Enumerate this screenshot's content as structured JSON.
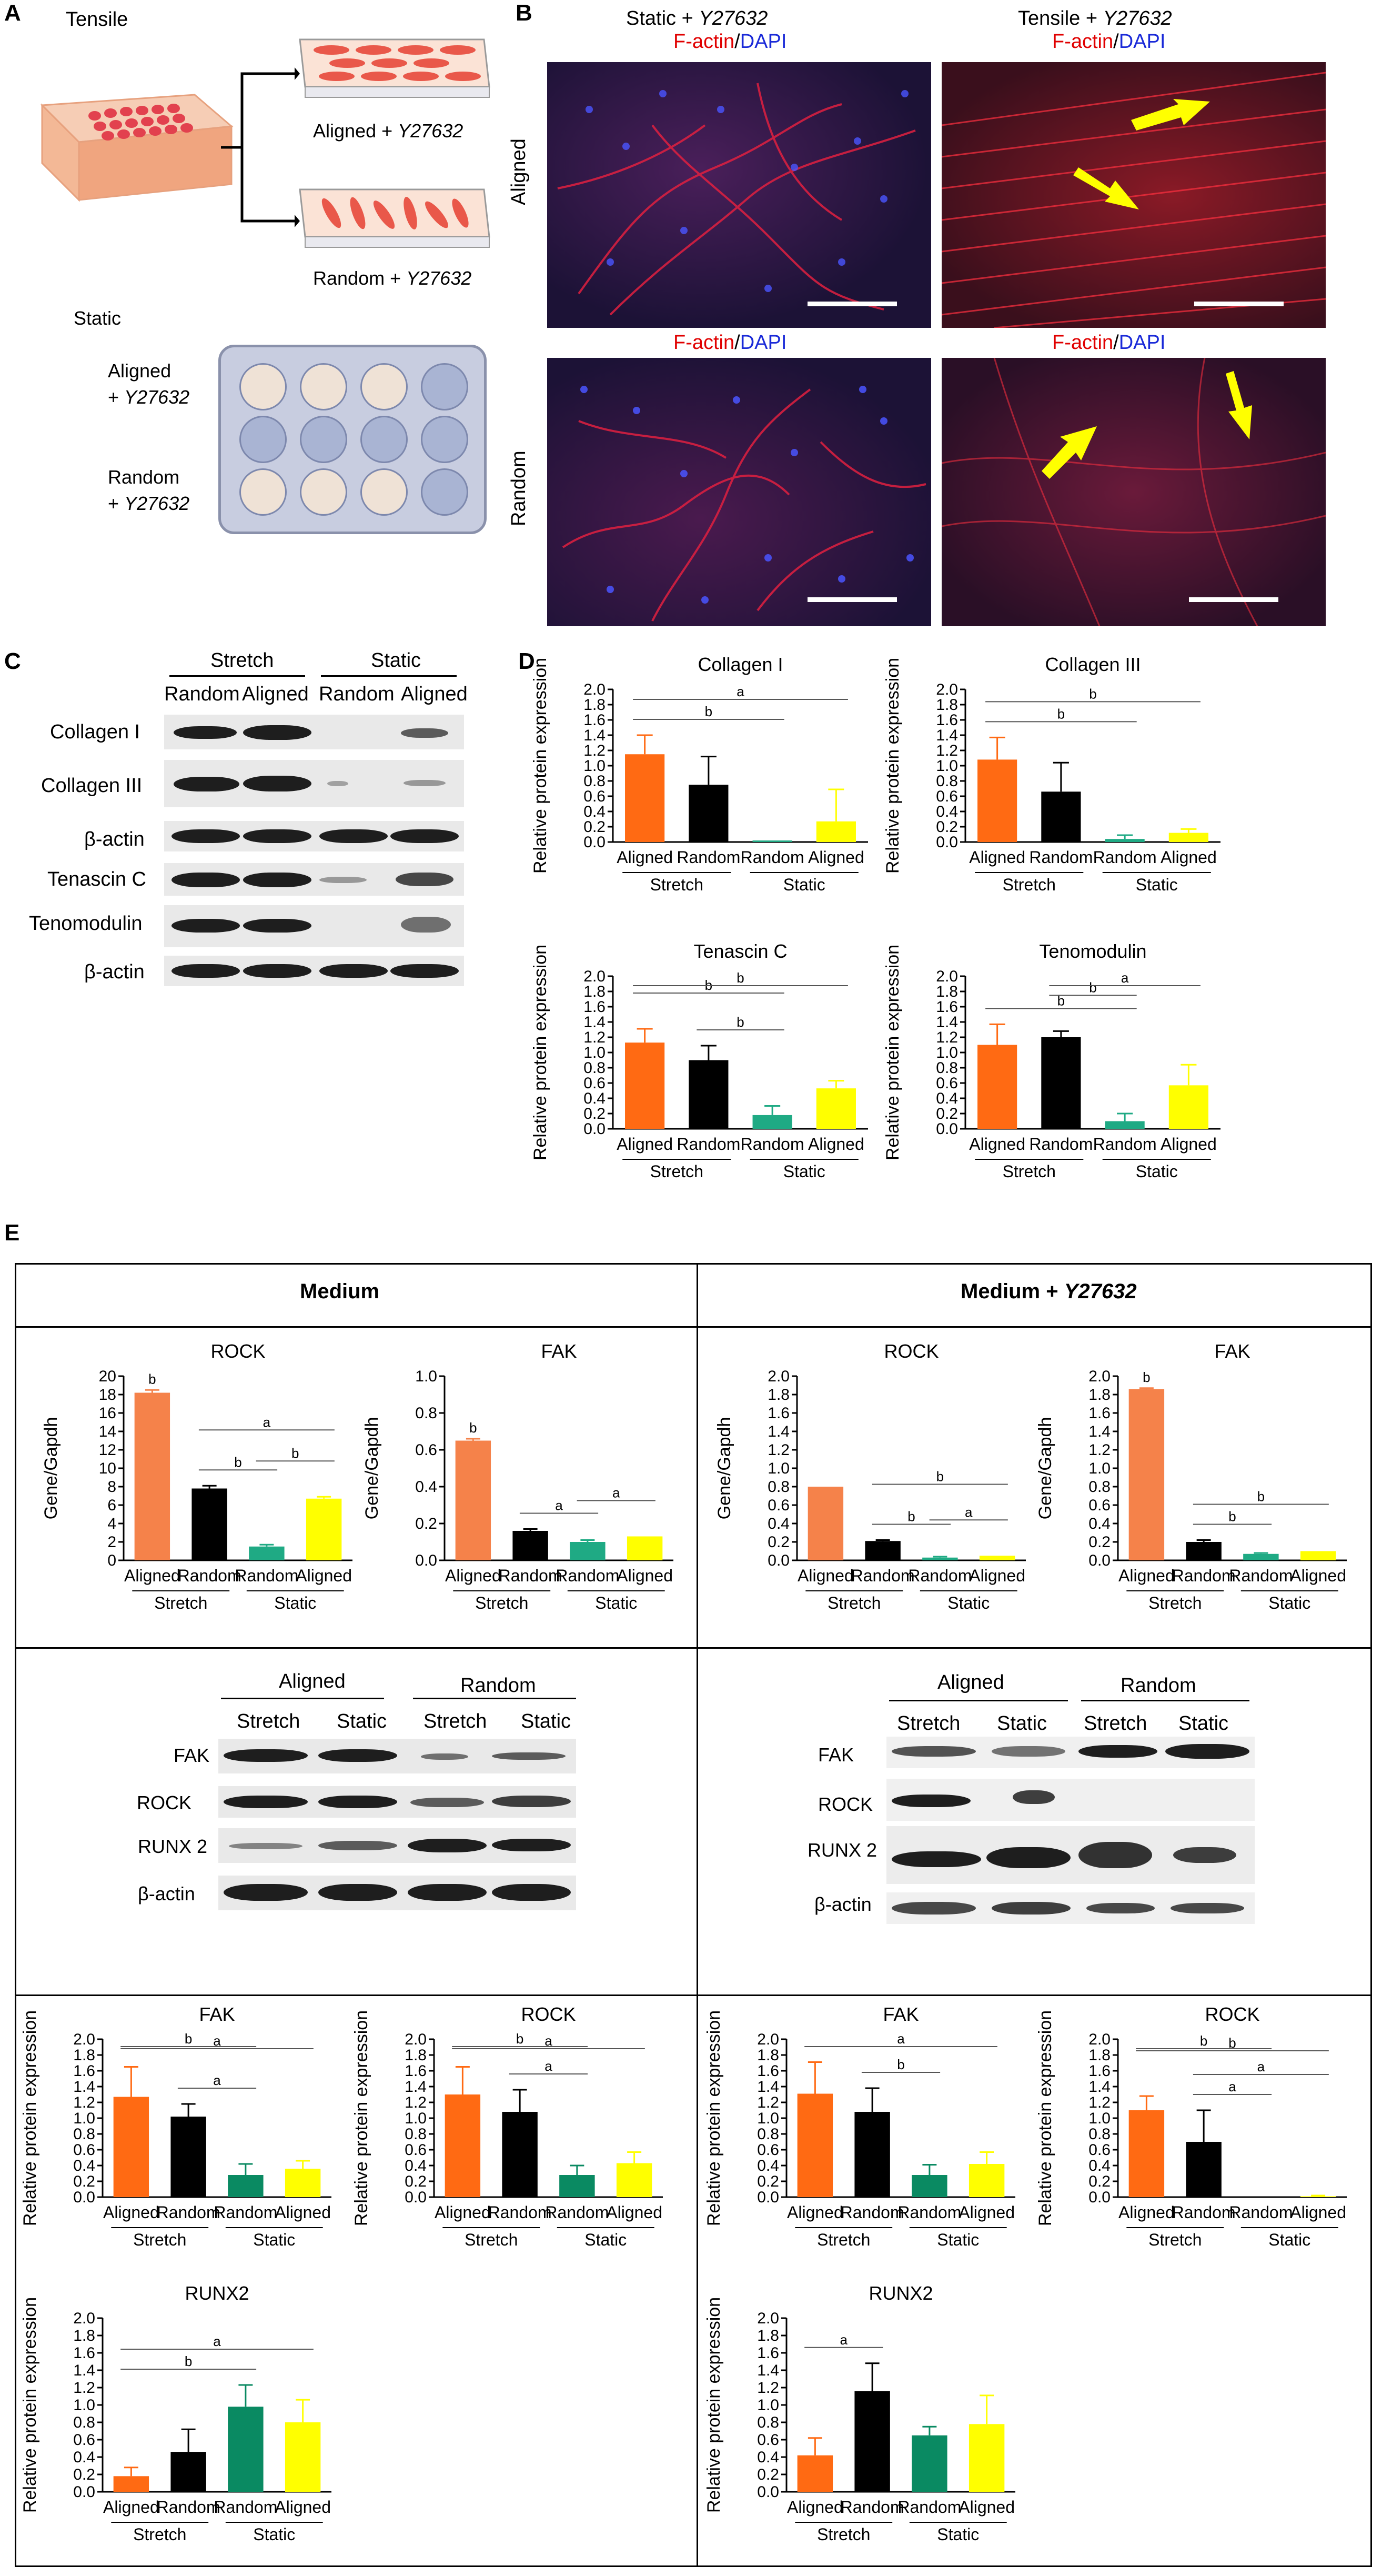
{
  "panels": {
    "a": "A",
    "b": "B",
    "c": "C",
    "d": "D",
    "e": "E"
  },
  "panel_a": {
    "tensile": "Tensile",
    "aligned_label": "Aligned + ",
    "random_label": "Random + ",
    "drug": "Y27632",
    "static": "Static",
    "plate_aligned_1": "Aligned",
    "plate_aligned_2": "+ ",
    "plate_random_1": "Random",
    "plate_random_2": "+ "
  },
  "panel_b": {
    "col1_title": "Static + ",
    "col2_title": "Tensile + ",
    "drug": "Y27632",
    "factin": "F-actin",
    "slash": "/",
    "dapi": "DAPI",
    "row1": "Aligned",
    "row2": "Random"
  },
  "panel_c": {
    "group1": "Stretch",
    "group2": "Static",
    "col_random": "Random",
    "col_aligned": "Aligned",
    "rows": [
      "Collagen I",
      "Collagen III",
      "β-actin",
      "Tenascin C",
      "Tenomodulin",
      "β-actin"
    ]
  },
  "panel_e": {
    "medium": "Medium",
    "medium_y": "Medium + ",
    "drug": "Y27632",
    "blot_left": {
      "group1": "Aligned",
      "group2": "Random",
      "cols": [
        "Stretch",
        "Static",
        "Stretch",
        "Static"
      ],
      "rows": [
        "FAK",
        "ROCK",
        "RUNX 2",
        "β-actin"
      ]
    },
    "blot_right": {
      "group1": "Aligned",
      "group2": "Random",
      "cols": [
        "Stretch",
        "Static",
        "Stretch",
        "Static"
      ],
      "rows": [
        "FAK",
        "ROCK",
        "RUNX 2",
        "β-actin"
      ]
    }
  },
  "colors": {
    "aligned_stretch": "#ff6a13",
    "random_stretch": "#000000",
    "random_static": "#1faa84",
    "aligned_static": "#ffff00",
    "e_aligned_stretch": "#f5824a",
    "e_random_static": "#0a8a62"
  },
  "chart_data": [
    {
      "id": "d1",
      "type": "bar",
      "title": "Collagen I",
      "ylabel": "Relative protein expression",
      "categories": [
        "Aligned",
        "Random",
        "Random",
        "Aligned"
      ],
      "groups": [
        "Stretch",
        "Static"
      ],
      "values": [
        1.15,
        0.75,
        0.02,
        0.27
      ],
      "errors": [
        0.25,
        0.37,
        0.0,
        0.42
      ],
      "ylim": [
        0,
        2.0
      ],
      "ystep": 0.2,
      "sig": [
        {
          "from": 0,
          "to": 2,
          "label": "b"
        },
        {
          "from": 0,
          "to": 3,
          "label": "a"
        }
      ]
    },
    {
      "id": "d2",
      "type": "bar",
      "title": "Collagen III",
      "ylabel": "Relative protein expression",
      "categories": [
        "Aligned",
        "Random",
        "Random",
        "Aligned"
      ],
      "groups": [
        "Stretch",
        "Static"
      ],
      "values": [
        1.08,
        0.66,
        0.04,
        0.12
      ],
      "errors": [
        0.29,
        0.38,
        0.05,
        0.05
      ],
      "ylim": [
        0,
        2.0
      ],
      "ystep": 0.2,
      "sig": [
        {
          "from": 0,
          "to": 2,
          "label": "b"
        },
        {
          "from": 0,
          "to": 3,
          "label": "b"
        }
      ]
    },
    {
      "id": "d3",
      "type": "bar",
      "title": "Tenascin C",
      "ylabel": "Relative protein expression",
      "categories": [
        "Aligned",
        "Random",
        "Random",
        "Aligned"
      ],
      "groups": [
        "Stretch",
        "Static"
      ],
      "values": [
        1.13,
        0.9,
        0.18,
        0.53
      ],
      "errors": [
        0.18,
        0.19,
        0.12,
        0.1
      ],
      "ylim": [
        0,
        2.0
      ],
      "ystep": 0.2,
      "sig": [
        {
          "from": 1,
          "to": 2,
          "label": "b"
        },
        {
          "from": 0,
          "to": 2,
          "label": "b"
        },
        {
          "from": 0,
          "to": 3,
          "label": "b"
        }
      ]
    },
    {
      "id": "d4",
      "type": "bar",
      "title": "Tenomodulin",
      "ylabel": "Relative protein expression",
      "categories": [
        "Aligned",
        "Random",
        "Random",
        "Aligned"
      ],
      "groups": [
        "Stretch",
        "Static"
      ],
      "values": [
        1.1,
        1.2,
        0.1,
        0.57
      ],
      "errors": [
        0.27,
        0.08,
        0.1,
        0.27
      ],
      "ylim": [
        0,
        2.0
      ],
      "ystep": 0.2,
      "sig": [
        {
          "from": 0,
          "to": 2,
          "label": "b"
        },
        {
          "from": 1,
          "to": 2,
          "label": "b"
        },
        {
          "from": 1,
          "to": 3,
          "label": "a"
        }
      ]
    },
    {
      "id": "e1",
      "type": "bar",
      "title": "ROCK",
      "ylabel": "Gene/Gapdh",
      "categories": [
        "Aligned",
        "Random",
        "Random",
        "Aligned"
      ],
      "groups": [
        "Stretch",
        "Static"
      ],
      "values": [
        18.2,
        7.8,
        1.5,
        6.7
      ],
      "errors": [
        0.3,
        0.3,
        0.2,
        0.2
      ],
      "ylim": [
        0,
        20
      ],
      "ystep": 2,
      "sig": [
        {
          "from": 0,
          "to": 0,
          "label": "b",
          "above": true
        },
        {
          "from": 1,
          "to": 2,
          "label": "b"
        },
        {
          "from": 2,
          "to": 3,
          "label": "b"
        },
        {
          "from": 1,
          "to": 3,
          "label": "a"
        }
      ]
    },
    {
      "id": "e2",
      "type": "bar",
      "title": "FAK",
      "ylabel": "Gene/Gapdh",
      "categories": [
        "Aligned",
        "Random",
        "Random",
        "Aligned"
      ],
      "groups": [
        "Stretch",
        "Static"
      ],
      "values": [
        0.65,
        0.16,
        0.1,
        0.13
      ],
      "errors": [
        0.01,
        0.01,
        0.01,
        0.0
      ],
      "ylim": [
        0,
        1.0
      ],
      "ystep": 0.2,
      "sig": [
        {
          "from": 0,
          "to": 0,
          "label": "b",
          "above": true
        },
        {
          "from": 1,
          "to": 2,
          "label": "a"
        },
        {
          "from": 2,
          "to": 3,
          "label": "a"
        }
      ]
    },
    {
      "id": "e3",
      "type": "bar",
      "title": "ROCK",
      "ylabel": "Gene/Gapdh",
      "categories": [
        "Aligned",
        "Random",
        "Random",
        "Aligned"
      ],
      "groups": [
        "Stretch",
        "Static"
      ],
      "values": [
        0.8,
        0.21,
        0.03,
        0.05
      ],
      "errors": [
        0.0,
        0.01,
        0.01,
        0.0
      ],
      "ylim": [
        0,
        2.0
      ],
      "ystep": 0.2,
      "sig": [
        {
          "from": 1,
          "to": 2,
          "label": "b"
        },
        {
          "from": 2,
          "to": 3,
          "label": "a"
        },
        {
          "from": 1,
          "to": 3,
          "label": "b"
        }
      ]
    },
    {
      "id": "e4",
      "type": "bar",
      "title": "FAK",
      "ylabel": "Gene/Gapdh",
      "categories": [
        "Aligned",
        "Random",
        "Random",
        "Aligned"
      ],
      "groups": [
        "Stretch",
        "Static"
      ],
      "values": [
        1.86,
        0.2,
        0.07,
        0.1
      ],
      "errors": [
        0.01,
        0.02,
        0.01,
        0.0
      ],
      "ylim": [
        0,
        2.0
      ],
      "ystep": 0.2,
      "sig": [
        {
          "from": 0,
          "to": 0,
          "label": "b",
          "above": true
        },
        {
          "from": 1,
          "to": 2,
          "label": "b"
        },
        {
          "from": 1,
          "to": 3,
          "label": "b"
        }
      ]
    },
    {
      "id": "e5",
      "type": "bar",
      "title": "FAK",
      "ylabel": "Relative protein expression",
      "categories": [
        "Aligned",
        "Random",
        "Random",
        "Aligned"
      ],
      "groups": [
        "Stretch",
        "Static"
      ],
      "values": [
        1.27,
        1.02,
        0.28,
        0.36
      ],
      "errors": [
        0.38,
        0.16,
        0.14,
        0.1
      ],
      "ylim": [
        0,
        2.0
      ],
      "ystep": 0.2,
      "sig": [
        {
          "from": 1,
          "to": 2,
          "label": "a"
        },
        {
          "from": 0,
          "to": 2,
          "label": "b"
        },
        {
          "from": 0,
          "to": 3,
          "label": "a"
        }
      ]
    },
    {
      "id": "e6",
      "type": "bar",
      "title": "ROCK",
      "ylabel": "Relative protein expression",
      "categories": [
        "Aligned",
        "Random",
        "Random",
        "Aligned"
      ],
      "groups": [
        "Stretch",
        "Static"
      ],
      "values": [
        1.3,
        1.08,
        0.28,
        0.43
      ],
      "errors": [
        0.35,
        0.28,
        0.12,
        0.14
      ],
      "ylim": [
        0,
        2.0
      ],
      "ystep": 0.2,
      "sig": [
        {
          "from": 1,
          "to": 2,
          "label": "a"
        },
        {
          "from": 0,
          "to": 2,
          "label": "b"
        },
        {
          "from": 0,
          "to": 3,
          "label": "a"
        }
      ]
    },
    {
      "id": "e7",
      "type": "bar",
      "title": "FAK",
      "ylabel": "Relative protein expression",
      "categories": [
        "Aligned",
        "Random",
        "Random",
        "Aligned"
      ],
      "groups": [
        "Stretch",
        "Static"
      ],
      "values": [
        1.31,
        1.08,
        0.28,
        0.42
      ],
      "errors": [
        0.4,
        0.3,
        0.13,
        0.15
      ],
      "ylim": [
        0,
        2.0
      ],
      "ystep": 0.2,
      "sig": [
        {
          "from": 1,
          "to": 2,
          "label": "b"
        },
        {
          "from": 0,
          "to": 3,
          "label": "a"
        }
      ]
    },
    {
      "id": "e8",
      "type": "bar",
      "title": "ROCK",
      "ylabel": "Relative protein expression",
      "categories": [
        "Aligned",
        "Random",
        "Random",
        "Aligned"
      ],
      "groups": [
        "Stretch",
        "Static"
      ],
      "values": [
        1.1,
        0.7,
        0.0,
        0.01
      ],
      "errors": [
        0.18,
        0.4,
        0.0,
        0.01
      ],
      "ylim": [
        0,
        2.0
      ],
      "ystep": 0.2,
      "sig": [
        {
          "from": 1,
          "to": 2,
          "label": "a"
        },
        {
          "from": 1,
          "to": 3,
          "label": "a"
        },
        {
          "from": 0,
          "to": 2,
          "label": "b"
        },
        {
          "from": 0,
          "to": 3,
          "label": "b"
        }
      ]
    },
    {
      "id": "e9",
      "type": "bar",
      "title": "RUNX2",
      "ylabel": "Relative protein expression",
      "categories": [
        "Aligned",
        "Random",
        "Random",
        "Aligned"
      ],
      "groups": [
        "Stretch",
        "Static"
      ],
      "values": [
        0.18,
        0.46,
        0.98,
        0.8
      ],
      "errors": [
        0.1,
        0.26,
        0.25,
        0.26
      ],
      "ylim": [
        0,
        2.0
      ],
      "ystep": 0.2,
      "sig": [
        {
          "from": 0,
          "to": 2,
          "label": "b"
        },
        {
          "from": 0,
          "to": 3,
          "label": "a"
        }
      ]
    },
    {
      "id": "e10",
      "type": "bar",
      "title": "RUNX2",
      "ylabel": "Relative protein expression",
      "categories": [
        "Aligned",
        "Random",
        "Random",
        "Aligned"
      ],
      "groups": [
        "Stretch",
        "Static"
      ],
      "values": [
        0.42,
        1.16,
        0.65,
        0.78
      ],
      "errors": [
        0.2,
        0.32,
        0.1,
        0.33
      ],
      "ylim": [
        0,
        2.0
      ],
      "ystep": 0.2,
      "sig": [
        {
          "from": 0,
          "to": 1,
          "label": "a"
        }
      ]
    }
  ]
}
